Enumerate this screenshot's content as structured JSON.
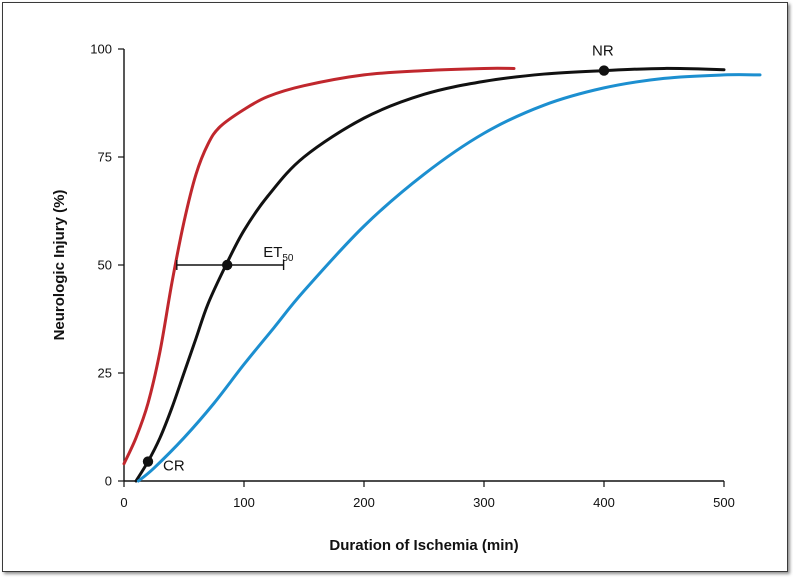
{
  "chart_data": {
    "type": "line",
    "title": "",
    "xlabel": "Duration of Ischemia (min)",
    "ylabel": "Neurologic Injury (%)",
    "xlim": [
      0,
      500
    ],
    "ylim": [
      0,
      100
    ],
    "xticks": [
      "0",
      "100",
      "200",
      "300",
      "400",
      "500"
    ],
    "yticks": [
      "0",
      "25",
      "50",
      "75",
      "100"
    ],
    "grid": false,
    "legend": "none",
    "series": [
      {
        "color": "#c0272d",
        "x": [
          0,
          10,
          20,
          30,
          40,
          50,
          60,
          70,
          80,
          100,
          120,
          150,
          200,
          250,
          300,
          325
        ],
        "y": [
          4,
          10,
          18,
          30,
          46,
          60,
          71,
          78,
          82,
          86,
          89,
          91.5,
          94,
          95,
          95.5,
          95.5
        ]
      },
      {
        "color": "#111111",
        "x": [
          10,
          20,
          30,
          40,
          50,
          60,
          70,
          85,
          100,
          120,
          150,
          200,
          250,
          300,
          350,
          400,
          450,
          500
        ],
        "y": [
          0,
          4.5,
          10,
          17,
          25,
          33,
          41,
          50,
          58,
          66,
          75,
          84,
          89.5,
          92.5,
          94.2,
          95,
          95.5,
          95.2
        ]
      },
      {
        "color": "#1c8fd0",
        "x": [
          12,
          25,
          50,
          75,
          100,
          125,
          150,
          200,
          250,
          300,
          350,
          400,
          450,
          500,
          530
        ],
        "y": [
          0,
          3,
          10,
          18,
          27,
          35.5,
          44,
          59,
          71,
          80.5,
          87,
          91,
          93.2,
          94,
          94
        ]
      }
    ],
    "markers": [
      {
        "x": 20,
        "y": 4.5,
        "label": "CR"
      },
      {
        "x": 86,
        "y": 50,
        "label": "ET",
        "label_sub": "50"
      },
      {
        "x": 400,
        "y": 95,
        "label": "NR"
      }
    ],
    "error_bar": {
      "y": 50,
      "x_low": 44,
      "x_high": 133
    }
  }
}
